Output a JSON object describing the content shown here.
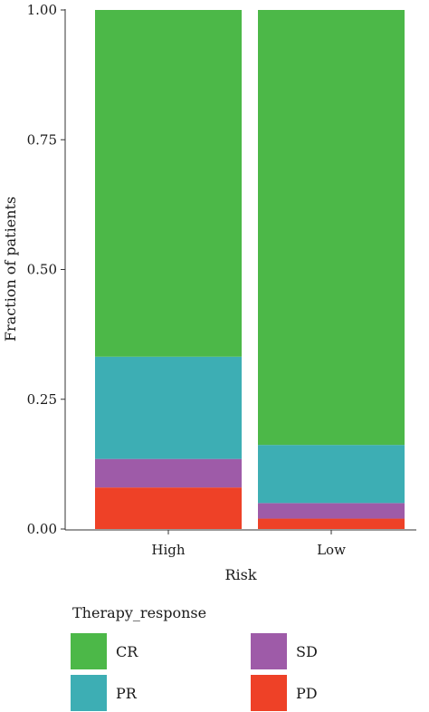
{
  "chart_data": {
    "type": "bar",
    "stacked": true,
    "xlabel": "Risk",
    "ylabel": "Fraction of patients",
    "categories": [
      "High",
      "Low"
    ],
    "ylim": [
      0,
      1
    ],
    "yticks": [
      "0.00",
      "0.25",
      "0.50",
      "0.75",
      "1.00"
    ],
    "series": [
      {
        "name": "PD",
        "values": [
          0.08,
          0.02
        ],
        "color": "#EE4127"
      },
      {
        "name": "SD",
        "values": [
          0.055,
          0.03
        ],
        "color": "#9E5BA8"
      },
      {
        "name": "PR",
        "values": [
          0.197,
          0.112
        ],
        "color": "#3DAEB4"
      },
      {
        "name": "CR",
        "values": [
          0.668,
          0.838
        ],
        "color": "#4CB848"
      }
    ],
    "legend": {
      "title": "Therapy_response",
      "position": "bottom",
      "order": [
        "CR",
        "SD",
        "PR",
        "PD"
      ]
    }
  }
}
